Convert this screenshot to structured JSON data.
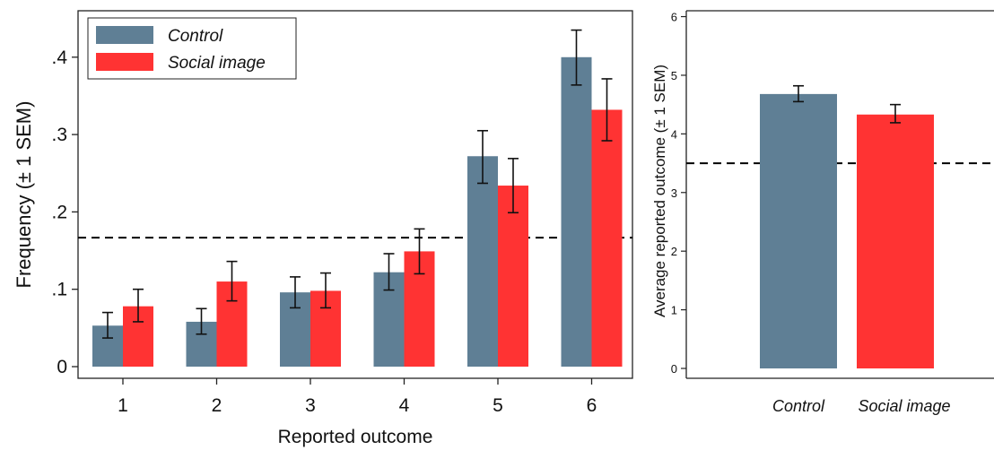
{
  "colors": {
    "control": "#5F7F95",
    "social": "#FF3333",
    "axis": "#222222",
    "reference_line": "#000000"
  },
  "chart_data": [
    {
      "type": "bar",
      "ylabel": "Frequency (± 1 SEM)",
      "xlabel": "Reported outcome",
      "categories": [
        "1",
        "2",
        "3",
        "4",
        "5",
        "6"
      ],
      "ylim": [
        0,
        0.46
      ],
      "yticks": [
        {
          "value": 0,
          "label": "0"
        },
        {
          "value": 0.1,
          "label": ".1"
        },
        {
          "value": 0.2,
          "label": ".2"
        },
        {
          "value": 0.3,
          "label": ".3"
        },
        {
          "value": 0.4,
          "label": ".4"
        }
      ],
      "reference_line": 0.1667,
      "legend": {
        "position": "top-left",
        "entries": [
          "Control",
          "Social image"
        ]
      },
      "series": [
        {
          "name": "Control",
          "values": [
            0.053,
            0.058,
            0.096,
            0.122,
            0.272,
            0.4
          ],
          "err_low": [
            0.037,
            0.042,
            0.076,
            0.099,
            0.237,
            0.364
          ],
          "err_high": [
            0.07,
            0.075,
            0.116,
            0.146,
            0.305,
            0.435
          ]
        },
        {
          "name": "Social image",
          "values": [
            0.078,
            0.11,
            0.098,
            0.149,
            0.234,
            0.332
          ],
          "err_low": [
            0.058,
            0.085,
            0.076,
            0.12,
            0.199,
            0.292
          ],
          "err_high": [
            0.1,
            0.136,
            0.121,
            0.178,
            0.269,
            0.372
          ]
        }
      ]
    },
    {
      "type": "bar",
      "ylabel": "Average reported outcome (± 1 SEM)",
      "xlabel": "",
      "categories": [
        "Control",
        "Social image"
      ],
      "ylim": [
        0,
        6.1
      ],
      "yticks": [
        {
          "value": 0,
          "label": "0"
        },
        {
          "value": 1,
          "label": "1"
        },
        {
          "value": 2,
          "label": "2"
        },
        {
          "value": 3,
          "label": "3"
        },
        {
          "value": 4,
          "label": "4"
        },
        {
          "value": 5,
          "label": "5"
        },
        {
          "value": 6,
          "label": "6"
        }
      ],
      "reference_line": 3.5,
      "values": [
        4.68,
        4.33
      ],
      "err_low": [
        4.55,
        4.19
      ],
      "err_high": [
        4.82,
        4.5
      ]
    }
  ]
}
